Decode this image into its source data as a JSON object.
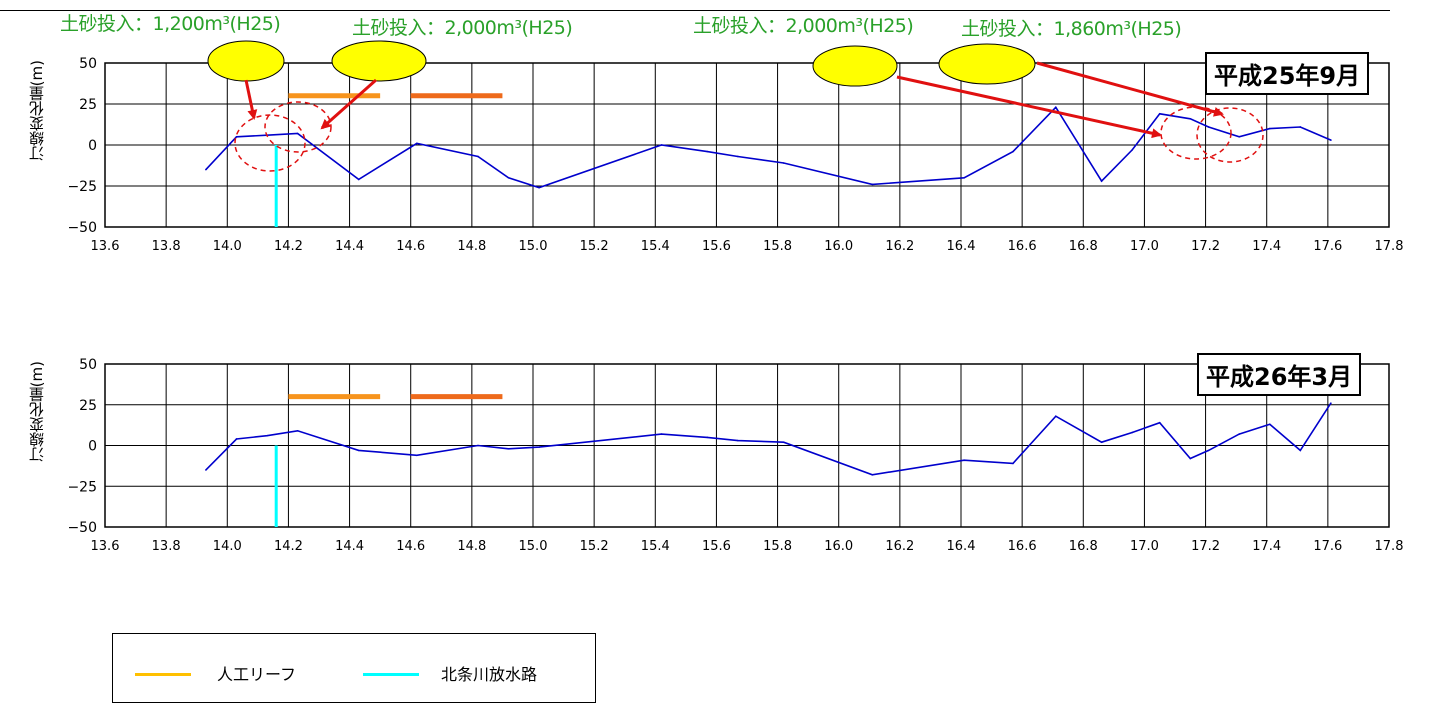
{
  "colors": {
    "series": "#0000cc",
    "reef_light": "#f7941d",
    "reef_dark": "#ee6a1b",
    "outfall": "#00ffff",
    "annotation_text": "#2aa12a",
    "ellipse_fill": "#ffff00",
    "arrow": "#e01010",
    "circle": "#e01010",
    "legend_reef": "#ffc000"
  },
  "annotations": [
    "土砂投入：1,200m³(H25)",
    "土砂投入：2,000m³(H25)",
    "土砂投入：2,000m³(H25)",
    "土砂投入：1,860m³(H25)"
  ],
  "legend": {
    "reef_label": "人工リーフ",
    "outfall_label": "北条川放水路"
  },
  "chart_data": [
    {
      "type": "line",
      "period_label": "平成25年9月",
      "ylabel": "汀線変化量(m)",
      "xlabel": "",
      "xlim": [
        13.6,
        17.8
      ],
      "ylim": [
        -50,
        50
      ],
      "x_ticks": [
        "13.6",
        "13.8",
        "14.0",
        "14.2",
        "14.4",
        "14.6",
        "14.8",
        "15.0",
        "15.2",
        "15.4",
        "15.6",
        "15.8",
        "16.0",
        "16.2",
        "16.4",
        "16.6",
        "16.8",
        "17.0",
        "17.2",
        "17.4",
        "17.6",
        "17.8"
      ],
      "y_ticks": [
        "50",
        "25",
        "0",
        "−25",
        "−50"
      ],
      "grid": true,
      "series": [
        {
          "x": [
            13.93,
            14.03,
            14.13,
            14.23,
            14.43,
            14.62,
            14.82,
            14.92,
            15.02,
            15.42,
            15.57,
            15.67,
            15.82,
            16.11,
            16.41,
            16.57,
            16.71,
            16.86,
            16.96,
            17.05,
            17.15,
            17.21,
            17.31,
            17.41,
            17.51,
            17.61
          ],
          "values": [
            -15,
            5,
            6,
            7,
            -21,
            1,
            -7,
            -20,
            -26,
            0,
            -4,
            -7,
            -11,
            -24,
            -20,
            -4,
            23,
            -22,
            -3,
            19,
            16,
            11,
            5,
            10,
            11,
            3
          ]
        }
      ],
      "reefs": [
        {
          "x_start": 14.2,
          "x_end": 14.5,
          "y": 30
        },
        {
          "x_start": 14.6,
          "x_end": 14.9,
          "y": 30
        }
      ],
      "outfall_x": 14.16
    },
    {
      "type": "line",
      "period_label": "平成26年3月",
      "ylabel": "汀線変化量(m)",
      "xlabel": "",
      "xlim": [
        13.6,
        17.8
      ],
      "ylim": [
        -50,
        50
      ],
      "x_ticks": [
        "13.6",
        "13.8",
        "14.0",
        "14.2",
        "14.4",
        "14.6",
        "14.8",
        "15.0",
        "15.2",
        "15.4",
        "15.6",
        "15.8",
        "16.0",
        "16.2",
        "16.4",
        "16.6",
        "16.8",
        "17.0",
        "17.2",
        "17.4",
        "17.6",
        "17.8"
      ],
      "y_ticks": [
        "50",
        "25",
        "0",
        "−25",
        "−50"
      ],
      "grid": true,
      "series": [
        {
          "x": [
            13.93,
            14.03,
            14.13,
            14.23,
            14.43,
            14.62,
            14.82,
            14.92,
            15.02,
            15.42,
            15.57,
            15.67,
            15.82,
            16.11,
            16.41,
            16.57,
            16.71,
            16.86,
            16.96,
            17.05,
            17.15,
            17.21,
            17.31,
            17.41,
            17.51,
            17.61
          ],
          "values": [
            -15,
            4,
            6,
            9,
            -3,
            -6,
            0,
            -2,
            -1,
            7,
            5,
            3,
            2,
            -18,
            -9,
            -11,
            18,
            2,
            8,
            14,
            -8,
            -3,
            7,
            13,
            -3,
            26
          ]
        }
      ],
      "reefs": [
        {
          "x_start": 14.2,
          "x_end": 14.5,
          "y": 30
        },
        {
          "x_start": 14.6,
          "x_end": 14.9,
          "y": 30
        }
      ],
      "outfall_x": 14.16
    }
  ]
}
